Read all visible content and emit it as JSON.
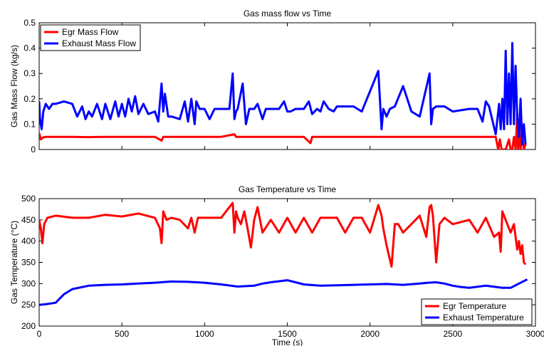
{
  "chart_data": [
    {
      "type": "line",
      "title": "Gas mass flow vs Time",
      "xlabel": "",
      "ylabel": "Gas Mass Flow (kg/s)",
      "xlim": [
        0,
        3000
      ],
      "ylim": [
        0,
        0.5
      ],
      "xticks": [
        0,
        500,
        1000,
        1500,
        2000,
        2500,
        3000
      ],
      "yticks": [
        0,
        0.1,
        0.2,
        0.3,
        0.4,
        0.5
      ],
      "ytick_labels": [
        "0",
        "0.1",
        "0.2",
        "0.3",
        "0.4",
        "0.5"
      ],
      "show_xtick_labels": false,
      "grid": false,
      "legend_position": "top-left",
      "series": [
        {
          "name": "Egr Mass Flow",
          "color": "#ff0000",
          "x": [
            0,
            10,
            25,
            45,
            100,
            200,
            300,
            400,
            500,
            600,
            700,
            740,
            750,
            800,
            900,
            1000,
            1100,
            1180,
            1190,
            1300,
            1400,
            1500,
            1600,
            1640,
            1650,
            1700,
            1800,
            1900,
            2000,
            2100,
            2200,
            2300,
            2400,
            2500,
            2600,
            2700,
            2760,
            2775,
            2785,
            2795,
            2820,
            2840,
            2850,
            2860,
            2870,
            2880,
            2890,
            2895,
            2900,
            2910,
            2920,
            2930,
            2940
          ],
          "y": [
            0.065,
            0.04,
            0.048,
            0.05,
            0.05,
            0.05,
            0.049,
            0.05,
            0.05,
            0.05,
            0.05,
            0.035,
            0.05,
            0.05,
            0.05,
            0.05,
            0.05,
            0.06,
            0.05,
            0.05,
            0.05,
            0.05,
            0.05,
            0.025,
            0.05,
            0.05,
            0.05,
            0.05,
            0.05,
            0.05,
            0.05,
            0.05,
            0.05,
            0.05,
            0.05,
            0.05,
            0.05,
            0.0,
            0.04,
            0.0,
            0.0,
            0.04,
            0.0,
            0.0,
            0.05,
            0.0,
            0.14,
            0.0,
            0.11,
            0.0,
            0.06,
            0.0,
            0.02
          ]
        },
        {
          "name": "Exhaust Mass Flow",
          "color": "#0000ff",
          "x": [
            0,
            5,
            15,
            25,
            40,
            60,
            80,
            100,
            150,
            200,
            230,
            260,
            280,
            300,
            320,
            350,
            380,
            400,
            430,
            460,
            480,
            500,
            520,
            540,
            560,
            580,
            600,
            630,
            660,
            700,
            720,
            740,
            750,
            760,
            780,
            800,
            850,
            880,
            900,
            920,
            940,
            950,
            970,
            1000,
            1030,
            1060,
            1100,
            1150,
            1170,
            1180,
            1190,
            1200,
            1230,
            1250,
            1270,
            1300,
            1320,
            1350,
            1370,
            1400,
            1450,
            1480,
            1500,
            1520,
            1550,
            1600,
            1630,
            1650,
            1680,
            1700,
            1720,
            1750,
            1780,
            1800,
            1900,
            1950,
            2050,
            2070,
            2080,
            2100,
            2120,
            2150,
            2200,
            2250,
            2300,
            2360,
            2370,
            2380,
            2400,
            2450,
            2500,
            2600,
            2650,
            2680,
            2700,
            2720,
            2760,
            2780,
            2790,
            2800,
            2810,
            2820,
            2830,
            2840,
            2850,
            2860,
            2870,
            2880,
            2890,
            2900,
            2910,
            2920,
            2930,
            2940
          ],
          "y": [
            0.19,
            0.12,
            0.08,
            0.15,
            0.18,
            0.16,
            0.18,
            0.18,
            0.19,
            0.18,
            0.13,
            0.17,
            0.12,
            0.15,
            0.13,
            0.18,
            0.12,
            0.18,
            0.12,
            0.19,
            0.13,
            0.18,
            0.13,
            0.2,
            0.15,
            0.21,
            0.14,
            0.18,
            0.14,
            0.15,
            0.11,
            0.26,
            0.15,
            0.22,
            0.13,
            0.13,
            0.12,
            0.19,
            0.11,
            0.2,
            0.1,
            0.19,
            0.16,
            0.16,
            0.12,
            0.16,
            0.16,
            0.16,
            0.3,
            0.12,
            0.15,
            0.16,
            0.26,
            0.1,
            0.16,
            0.16,
            0.18,
            0.12,
            0.16,
            0.16,
            0.16,
            0.19,
            0.15,
            0.15,
            0.16,
            0.16,
            0.19,
            0.14,
            0.16,
            0.15,
            0.19,
            0.16,
            0.15,
            0.17,
            0.17,
            0.15,
            0.31,
            0.08,
            0.16,
            0.13,
            0.16,
            0.17,
            0.25,
            0.15,
            0.13,
            0.3,
            0.1,
            0.16,
            0.17,
            0.17,
            0.15,
            0.16,
            0.16,
            0.11,
            0.19,
            0.17,
            0.06,
            0.18,
            0.08,
            0.2,
            0.08,
            0.39,
            0.1,
            0.3,
            0.1,
            0.42,
            0.1,
            0.33,
            0.13,
            0.05,
            0.2,
            0.02,
            0.1,
            0.02
          ]
        }
      ]
    },
    {
      "type": "line",
      "title": "Gas Temperature vs Time",
      "xlabel": "Time (s)",
      "ylabel": "Gas Temperature (°C)",
      "xlim": [
        0,
        3000
      ],
      "ylim": [
        200,
        500
      ],
      "xticks": [
        0,
        500,
        1000,
        1500,
        2000,
        2500,
        3000
      ],
      "yticks": [
        200,
        250,
        300,
        350,
        400,
        450,
        500
      ],
      "ytick_labels": [
        "200",
        "250",
        "300",
        "350",
        "400",
        "450",
        "500"
      ],
      "show_xtick_labels": true,
      "grid": false,
      "legend_position": "bottom-right",
      "series": [
        {
          "name": "Egr Temperature",
          "color": "#ff0000",
          "x": [
            0,
            10,
            20,
            30,
            50,
            100,
            200,
            300,
            400,
            500,
            600,
            700,
            730,
            740,
            750,
            770,
            800,
            850,
            900,
            920,
            940,
            960,
            1000,
            1100,
            1150,
            1170,
            1180,
            1190,
            1200,
            1220,
            1240,
            1260,
            1280,
            1300,
            1320,
            1350,
            1400,
            1450,
            1500,
            1550,
            1600,
            1650,
            1700,
            1800,
            1850,
            1900,
            1950,
            2000,
            2050,
            2070,
            2080,
            2100,
            2130,
            2150,
            2170,
            2200,
            2300,
            2340,
            2360,
            2370,
            2380,
            2400,
            2420,
            2450,
            2500,
            2600,
            2650,
            2700,
            2750,
            2780,
            2790,
            2800,
            2850,
            2870,
            2880,
            2890,
            2900,
            2910,
            2920,
            2930,
            2940
          ],
          "y": [
            450,
            430,
            395,
            440,
            455,
            460,
            455,
            455,
            462,
            458,
            465,
            455,
            430,
            395,
            470,
            450,
            455,
            450,
            430,
            455,
            420,
            455,
            455,
            455,
            480,
            490,
            420,
            470,
            455,
            440,
            470,
            430,
            385,
            450,
            480,
            420,
            450,
            420,
            455,
            420,
            455,
            420,
            455,
            455,
            420,
            455,
            455,
            420,
            485,
            460,
            430,
            390,
            340,
            440,
            440,
            420,
            460,
            410,
            480,
            485,
            460,
            350,
            440,
            455,
            440,
            450,
            420,
            455,
            410,
            420,
            375,
            470,
            420,
            440,
            410,
            380,
            400,
            370,
            390,
            350,
            345
          ]
        },
        {
          "name": "Exhaust Temperature",
          "color": "#0000ff",
          "x": [
            0,
            50,
            100,
            150,
            200,
            300,
            400,
            500,
            600,
            700,
            800,
            900,
            1000,
            1100,
            1200,
            1300,
            1350,
            1400,
            1500,
            1550,
            1600,
            1700,
            1800,
            1900,
            2000,
            2100,
            2200,
            2300,
            2350,
            2400,
            2450,
            2500,
            2550,
            2600,
            2700,
            2800,
            2850,
            2900,
            2950
          ],
          "y": [
            250,
            252,
            255,
            275,
            287,
            295,
            297,
            298,
            300,
            302,
            305,
            304,
            302,
            298,
            293,
            295,
            300,
            303,
            308,
            303,
            298,
            295,
            296,
            297,
            298,
            299,
            297,
            300,
            302,
            303,
            300,
            295,
            292,
            290,
            295,
            290,
            290,
            300,
            310
          ]
        }
      ]
    }
  ]
}
